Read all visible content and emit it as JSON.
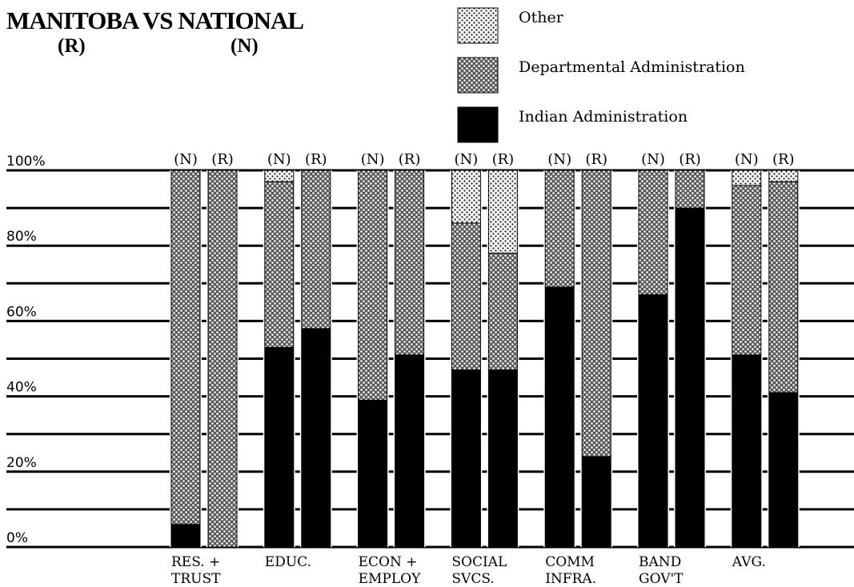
{
  "header": {
    "title": "MANITOBA VS NATIONAL",
    "label_r": "(R)",
    "label_n": "(N)"
  },
  "chart_data": {
    "type": "bar",
    "stacked": true,
    "categories": [
      {
        "line1": "RES. +",
        "line2": "TRUST"
      },
      {
        "line1": "EDUC.",
        "line2": ""
      },
      {
        "line1": "ECON +",
        "line2": "EMPLOY"
      },
      {
        "line1": "SOCIAL",
        "line2": "SVCS."
      },
      {
        "line1": "COMM",
        "line2": "INFRA."
      },
      {
        "line1": "BAND",
        "line2": "GOV'T"
      },
      {
        "line1": "AVG.",
        "line2": ""
      }
    ],
    "bar_labels": [
      "(N)",
      "(R)"
    ],
    "series": [
      {
        "name": "Indian Administration",
        "color": "#000000",
        "n": [
          6,
          53,
          39,
          47,
          69,
          67,
          51
        ],
        "r": [
          0,
          58,
          51,
          47,
          24,
          90,
          41
        ]
      },
      {
        "name": "Departmental Administration",
        "color": "pattern-dots-dense",
        "n": [
          94,
          44,
          61,
          39,
          31,
          33,
          45
        ],
        "r": [
          100,
          42,
          49,
          31,
          76,
          10,
          56
        ]
      },
      {
        "name": "Other",
        "color": "pattern-dots-light",
        "n": [
          0,
          3,
          0,
          14,
          0,
          0,
          4
        ],
        "r": [
          0,
          0,
          0,
          22,
          0,
          0,
          3
        ]
      }
    ],
    "legend": [
      "Other",
      "Departmental Administration",
      "Indian Administration"
    ],
    "legend_position": "top-right",
    "ylim": [
      0,
      100
    ],
    "yticks": [
      "0%",
      "20%",
      "40%",
      "60%",
      "80%",
      "100%"
    ],
    "grid": true
  }
}
